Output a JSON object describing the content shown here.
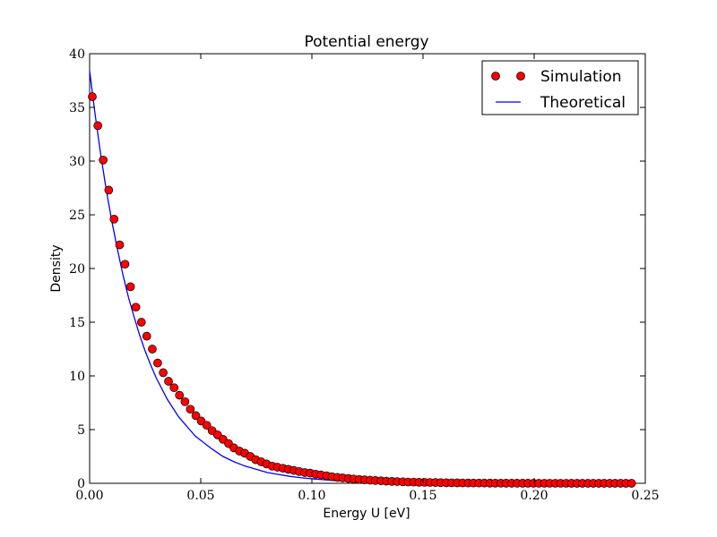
{
  "chart_data": {
    "type": "scatter",
    "title": "Potential energy",
    "xlabel": "Energy U [eV]",
    "ylabel": "Density",
    "xlim": [
      0.0,
      0.25
    ],
    "ylim": [
      0,
      40
    ],
    "xticks": [
      "0.00",
      "0.05",
      "0.10",
      "0.15",
      "0.20",
      "0.25"
    ],
    "yticks": [
      "0",
      "5",
      "10",
      "15",
      "20",
      "25",
      "30",
      "35",
      "40"
    ],
    "grid": false,
    "legend": "top-right",
    "series": [
      {
        "name": "Simulation",
        "kind": "markers",
        "color": "#ff0000",
        "edge_color": "#000000",
        "x": [
          0.0012,
          0.0037,
          0.0061,
          0.0086,
          0.011,
          0.0135,
          0.0159,
          0.0184,
          0.0208,
          0.0233,
          0.0257,
          0.0282,
          0.0306,
          0.0331,
          0.0355,
          0.038,
          0.0404,
          0.0429,
          0.0453,
          0.0478,
          0.0502,
          0.0527,
          0.0551,
          0.0576,
          0.06,
          0.0625,
          0.0649,
          0.0674,
          0.0698,
          0.0723,
          0.0747,
          0.0772,
          0.0796,
          0.0821,
          0.0845,
          0.087,
          0.0894,
          0.0919,
          0.0943,
          0.0968,
          0.0992,
          0.1017,
          0.1041,
          0.1066,
          0.109,
          0.1115,
          0.1139,
          0.1164,
          0.1188,
          0.1213,
          0.1237,
          0.1262,
          0.1286,
          0.1311,
          0.1335,
          0.136,
          0.1384,
          0.1409,
          0.1433,
          0.1458,
          0.1482,
          0.1507,
          0.1531,
          0.1556,
          0.158,
          0.1605,
          0.1629,
          0.1654,
          0.1678,
          0.1703,
          0.1727,
          0.1752,
          0.1776,
          0.1801,
          0.1825,
          0.185,
          0.1874,
          0.1899,
          0.1923,
          0.1948,
          0.1972,
          0.1997,
          0.2021,
          0.2046,
          0.207,
          0.2095,
          0.2119,
          0.2144,
          0.2168,
          0.2193,
          0.2217,
          0.2242,
          0.2266,
          0.2291,
          0.2315,
          0.234,
          0.2364,
          0.2389,
          0.2413,
          0.2438
        ],
        "y": [
          36.0,
          33.3,
          30.1,
          27.3,
          24.6,
          22.2,
          20.4,
          18.3,
          16.4,
          15.0,
          13.7,
          12.5,
          11.2,
          10.3,
          9.5,
          8.9,
          8.2,
          7.6,
          6.9,
          6.3,
          5.8,
          5.4,
          4.9,
          4.5,
          4.1,
          3.7,
          3.3,
          3.0,
          2.8,
          2.5,
          2.2,
          2.0,
          1.8,
          1.6,
          1.5,
          1.4,
          1.3,
          1.2,
          1.1,
          1.0,
          0.95,
          0.85,
          0.78,
          0.7,
          0.62,
          0.55,
          0.5,
          0.45,
          0.4,
          0.36,
          0.32,
          0.29,
          0.26,
          0.23,
          0.2,
          0.18,
          0.16,
          0.14,
          0.12,
          0.11,
          0.1,
          0.09,
          0.08,
          0.07,
          0.06,
          0.05,
          0.045,
          0.04,
          0.035,
          0.03,
          0.027,
          0.024,
          0.021,
          0.018,
          0.016,
          0.014,
          0.012,
          0.011,
          0.01,
          0.009,
          0.008,
          0.007,
          0.006,
          0.005,
          0.0045,
          0.004,
          0.0035,
          0.003,
          0.0027,
          0.0024,
          0.0021,
          0.0018,
          0.0016,
          0.0014,
          0.0012,
          0.0011,
          0.001,
          0.0009,
          0.0008,
          0.0007
        ]
      },
      {
        "name": "Theoretical",
        "kind": "line",
        "color": "#0000ff",
        "x": [
          0.0,
          0.0025,
          0.005,
          0.0075,
          0.01,
          0.0125,
          0.015,
          0.0175,
          0.02,
          0.0225,
          0.025,
          0.0275,
          0.03,
          0.0325,
          0.035,
          0.0375,
          0.04,
          0.0425,
          0.045,
          0.0475,
          0.05,
          0.055,
          0.06,
          0.065,
          0.07,
          0.075,
          0.08,
          0.085,
          0.09,
          0.095,
          0.1,
          0.11,
          0.12,
          0.13,
          0.14,
          0.15,
          0.16,
          0.17,
          0.18,
          0.19,
          0.2,
          0.21,
          0.22,
          0.23,
          0.2438
        ],
        "y": [
          38.4,
          34.3,
          30.6,
          27.3,
          24.4,
          21.8,
          19.4,
          17.3,
          15.5,
          13.8,
          12.3,
          11.0,
          9.8,
          8.8,
          7.8,
          7.0,
          6.2,
          5.6,
          5.0,
          4.4,
          4.0,
          3.2,
          2.5,
          2.0,
          1.6,
          1.3,
          1.0,
          0.82,
          0.65,
          0.52,
          0.42,
          0.26,
          0.17,
          0.11,
          0.07,
          0.045,
          0.029,
          0.018,
          0.012,
          0.0075,
          0.0048,
          0.003,
          0.0019,
          0.0012,
          0.0006
        ]
      }
    ]
  }
}
